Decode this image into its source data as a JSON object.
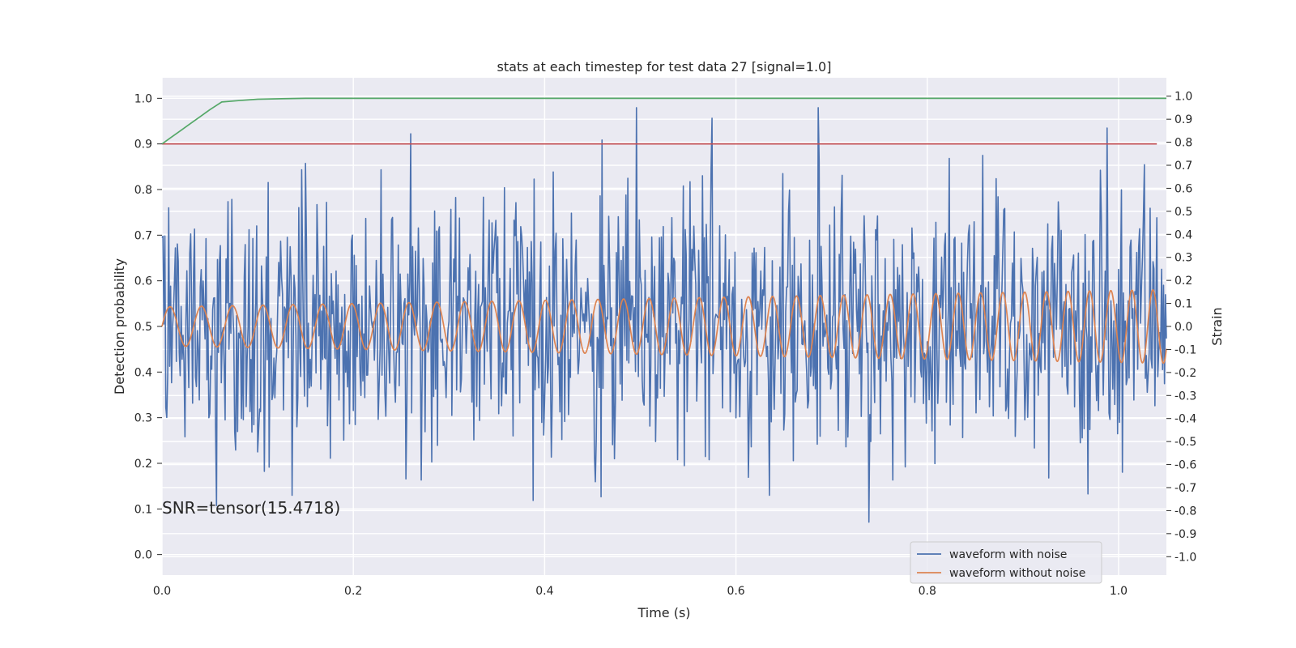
{
  "chart_data": {
    "type": "line",
    "title": "stats at each timestep for test data 27 [signal=1.0]",
    "xlabel": "Time (s)",
    "ylabel": "Detection probability",
    "y2label": "Strain",
    "xlim": [
      0.0,
      1.05
    ],
    "ylim": [
      -0.045,
      1.045
    ],
    "y2lim": [
      -1.08,
      1.08
    ],
    "xticks": [
      0.0,
      0.2,
      0.4,
      0.6,
      0.8,
      1.0
    ],
    "yticks": [
      0.0,
      0.1,
      0.2,
      0.3,
      0.4,
      0.5,
      0.6,
      0.7,
      0.8,
      0.9,
      1.0
    ],
    "y2ticks": [
      -1.0,
      -0.9,
      -0.8,
      -0.7,
      -0.6,
      -0.5,
      -0.4,
      -0.3,
      -0.2,
      -0.1,
      0.0,
      0.1,
      0.2,
      0.3,
      0.4,
      0.5,
      0.6,
      0.7,
      0.8,
      0.9,
      1.0
    ],
    "grid": true,
    "annotation": "SNR=tensor(15.4718)",
    "legend": {
      "placement": "lower-right",
      "entries": [
        {
          "label": "waveform with noise",
          "color": "#4c72b0"
        },
        {
          "label": "waveform without noise",
          "color": "#dd8452"
        }
      ]
    },
    "series": [
      {
        "axis": "left",
        "color": "#55a868",
        "x": [
          0.0,
          0.01,
          0.02,
          0.03,
          0.04,
          0.05,
          0.0625,
          0.08,
          0.1,
          0.125,
          0.15,
          0.2,
          0.3,
          0.5,
          0.75,
          1.0,
          1.05
        ],
        "y": [
          0.9,
          0.915,
          0.93,
          0.945,
          0.96,
          0.975,
          0.992,
          0.995,
          0.998,
          0.999,
          1.0,
          1.0,
          1.0,
          1.0,
          1.0,
          1.0,
          1.0
        ]
      },
      {
        "axis": "left",
        "color": "#c44e52",
        "x": [
          0.0,
          1.04
        ],
        "y": [
          0.9,
          0.9
        ]
      },
      {
        "axis": "right",
        "name": "waveform without noise",
        "color": "#dd8452",
        "signal": {
          "start": 0.0,
          "end": 1.05,
          "samples": 2100,
          "amp_start": 0.085,
          "amp_end": 0.16,
          "freq_start": 30,
          "freq_end": 46,
          "offset": 0.0
        }
      },
      {
        "axis": "right",
        "name": "waveform with noise",
        "color": "#4c72b0",
        "noise": {
          "start": 0.0,
          "end": 1.05,
          "samples": 1050,
          "seed": 27,
          "std": 0.29,
          "min": -0.85,
          "max": 0.95
        }
      }
    ]
  }
}
